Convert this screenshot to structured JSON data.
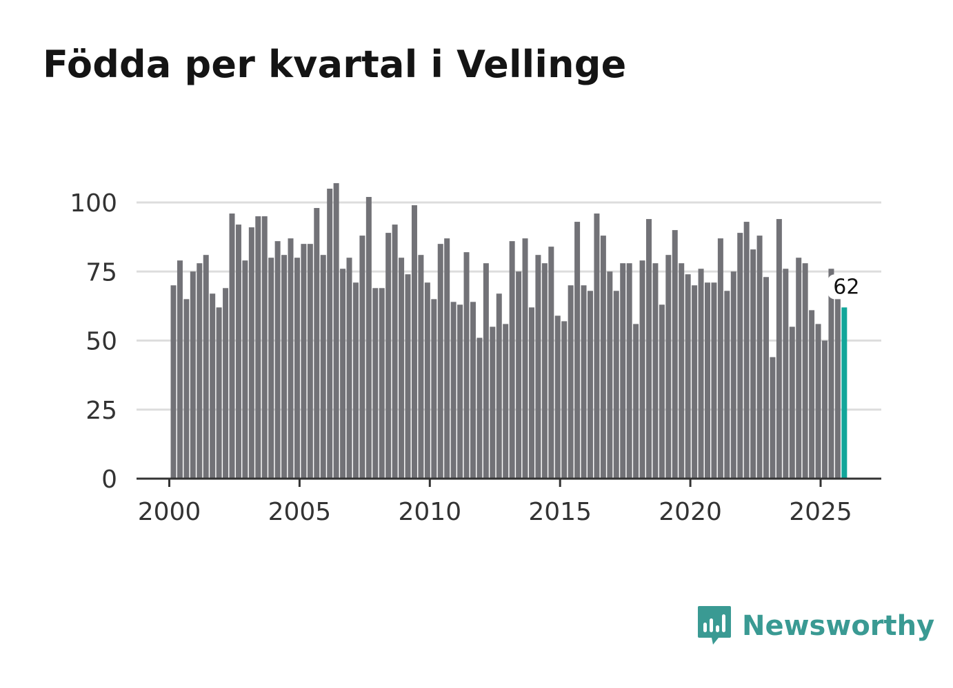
{
  "title": "Födda per kvartal i Vellinge",
  "brand": {
    "name": "Newsworthy",
    "icon": "newsworthy-logo-icon",
    "color": "#3a9a93"
  },
  "colors": {
    "bar": "#727277",
    "highlight": "#12a69a",
    "grid": "#dddddd",
    "axis": "#333333",
    "text": "#333333"
  },
  "chart_data": {
    "type": "bar",
    "title": "Födda per kvartal i Vellinge",
    "xlabel": "",
    "ylabel": "",
    "ylim": [
      0,
      110
    ],
    "yticks": [
      "0",
      "25",
      "50",
      "75",
      "100"
    ],
    "xticks": [
      "2000",
      "2005",
      "2010",
      "2015",
      "2020",
      "2025"
    ],
    "grid": true,
    "categories": [
      "2000 Q1",
      "2000 Q2",
      "2000 Q3",
      "2000 Q4",
      "2001 Q1",
      "2001 Q2",
      "2001 Q3",
      "2001 Q4",
      "2002 Q1",
      "2002 Q2",
      "2002 Q3",
      "2002 Q4",
      "2003 Q1",
      "2003 Q2",
      "2003 Q3",
      "2003 Q4",
      "2004 Q1",
      "2004 Q2",
      "2004 Q3",
      "2004 Q4",
      "2005 Q1",
      "2005 Q2",
      "2005 Q3",
      "2005 Q4",
      "2006 Q1",
      "2006 Q2",
      "2006 Q3",
      "2006 Q4",
      "2007 Q1",
      "2007 Q2",
      "2007 Q3",
      "2007 Q4",
      "2008 Q1",
      "2008 Q2",
      "2008 Q3",
      "2008 Q4",
      "2009 Q1",
      "2009 Q2",
      "2009 Q3",
      "2009 Q4",
      "2010 Q1",
      "2010 Q2",
      "2010 Q3",
      "2010 Q4",
      "2011 Q1",
      "2011 Q2",
      "2011 Q3",
      "2011 Q4",
      "2012 Q1",
      "2012 Q2",
      "2012 Q3",
      "2012 Q4",
      "2013 Q1",
      "2013 Q2",
      "2013 Q3",
      "2013 Q4",
      "2014 Q1",
      "2014 Q2",
      "2014 Q3",
      "2014 Q4",
      "2015 Q1",
      "2015 Q2",
      "2015 Q3",
      "2015 Q4",
      "2016 Q1",
      "2016 Q2",
      "2016 Q3",
      "2016 Q4",
      "2017 Q1",
      "2017 Q2",
      "2017 Q3",
      "2017 Q4",
      "2018 Q1",
      "2018 Q2",
      "2018 Q3",
      "2018 Q4",
      "2019 Q1",
      "2019 Q2",
      "2019 Q3",
      "2019 Q4",
      "2020 Q1",
      "2020 Q2",
      "2020 Q3",
      "2020 Q4",
      "2021 Q1",
      "2021 Q2",
      "2021 Q3",
      "2021 Q4",
      "2022 Q1",
      "2022 Q2",
      "2022 Q3",
      "2022 Q4",
      "2023 Q1",
      "2023 Q2",
      "2023 Q3",
      "2023 Q4",
      "2024 Q1",
      "2024 Q2",
      "2024 Q3",
      "2024 Q4",
      "2025 Q1",
      "2025 Q2",
      "2025 Q3",
      "2025 Q4"
    ],
    "series": [
      {
        "name": "Födda",
        "values": [
          70,
          79,
          65,
          75,
          78,
          81,
          67,
          62,
          69,
          96,
          92,
          79,
          91,
          95,
          95,
          80,
          86,
          81,
          87,
          80,
          85,
          85,
          98,
          81,
          105,
          107,
          76,
          80,
          71,
          88,
          102,
          69,
          69,
          89,
          92,
          80,
          74,
          99,
          81,
          71,
          65,
          85,
          87,
          64,
          63,
          82,
          64,
          51,
          78,
          55,
          67,
          56,
          86,
          75,
          87,
          62,
          81,
          78,
          84,
          59,
          57,
          70,
          93,
          70,
          68,
          96,
          88,
          75,
          68,
          78,
          78,
          56,
          79,
          94,
          78,
          63,
          81,
          90,
          78,
          74,
          70,
          76,
          71,
          71,
          87,
          68,
          75,
          89,
          93,
          83,
          88,
          73,
          44,
          94,
          76,
          55,
          80,
          78,
          61,
          56,
          50,
          76,
          66,
          62
        ]
      }
    ],
    "annotations": [
      {
        "category": "2025 Q4",
        "label": "62"
      }
    ]
  }
}
